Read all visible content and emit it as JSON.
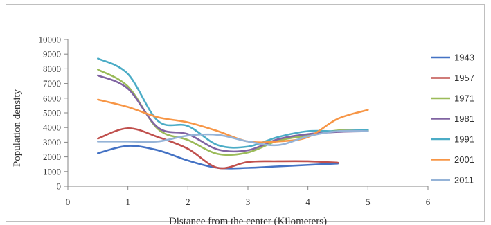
{
  "chart_data": {
    "type": "line",
    "title": "",
    "xlabel": "Distance  from the center (Kilometers)",
    "ylabel": "Population density",
    "xlim": [
      0,
      6
    ],
    "ylim": [
      0,
      10000
    ],
    "xticks": [
      "0",
      "1",
      "2",
      "3",
      "4",
      "5",
      "6"
    ],
    "yticks": [
      "0",
      "1000",
      "2000",
      "3000",
      "4000",
      "5000",
      "6000",
      "7000",
      "8000",
      "9000",
      "10000"
    ],
    "grid": false,
    "legend_position": "right",
    "series": [
      {
        "name": "1943",
        "color": "#4472c4",
        "points": [
          [
            0.5,
            2250
          ],
          [
            1.0,
            2750
          ],
          [
            1.5,
            2450
          ],
          [
            2.0,
            1750
          ],
          [
            2.5,
            1250
          ],
          [
            3.0,
            1250
          ],
          [
            3.5,
            1350
          ],
          [
            4.0,
            1450
          ],
          [
            4.5,
            1550
          ]
        ]
      },
      {
        "name": "1957",
        "color": "#c0504d",
        "points": [
          [
            0.5,
            3250
          ],
          [
            1.0,
            3950
          ],
          [
            1.5,
            3350
          ],
          [
            2.0,
            2550
          ],
          [
            2.5,
            1250
          ],
          [
            3.0,
            1650
          ],
          [
            3.5,
            1700
          ],
          [
            4.0,
            1700
          ],
          [
            4.5,
            1600
          ]
        ]
      },
      {
        "name": "1971",
        "color": "#9bbb59",
        "points": [
          [
            0.5,
            7950
          ],
          [
            1.0,
            6800
          ],
          [
            1.5,
            3900
          ],
          [
            2.0,
            3150
          ],
          [
            2.5,
            2200
          ],
          [
            3.0,
            2300
          ],
          [
            3.5,
            3100
          ],
          [
            4.0,
            3450
          ],
          [
            4.5,
            3800
          ],
          [
            5.0,
            3800
          ]
        ]
      },
      {
        "name": "1981",
        "color": "#8064a2",
        "points": [
          [
            0.5,
            7550
          ],
          [
            1.0,
            6650
          ],
          [
            1.5,
            4000
          ],
          [
            2.0,
            3550
          ],
          [
            2.5,
            2500
          ],
          [
            3.0,
            2450
          ],
          [
            3.5,
            3200
          ],
          [
            4.0,
            3550
          ],
          [
            4.5,
            3700
          ],
          [
            5.0,
            3750
          ]
        ]
      },
      {
        "name": "1991",
        "color": "#4bacc6",
        "points": [
          [
            0.5,
            8700
          ],
          [
            1.0,
            7650
          ],
          [
            1.5,
            4450
          ],
          [
            2.0,
            4100
          ],
          [
            2.5,
            2800
          ],
          [
            3.0,
            2700
          ],
          [
            3.5,
            3350
          ],
          [
            4.0,
            3750
          ],
          [
            4.5,
            3750
          ],
          [
            5.0,
            3850
          ]
        ]
      },
      {
        "name": "2001",
        "color": "#f79646",
        "points": [
          [
            0.5,
            5900
          ],
          [
            1.0,
            5400
          ],
          [
            1.5,
            4700
          ],
          [
            2.0,
            4350
          ],
          [
            2.5,
            3750
          ],
          [
            3.0,
            3050
          ],
          [
            3.5,
            3050
          ],
          [
            4.0,
            3350
          ],
          [
            4.5,
            4600
          ],
          [
            5.0,
            5200
          ]
        ]
      },
      {
        "name": "2011",
        "color": "#95b3d7",
        "points": [
          [
            0.5,
            3050
          ],
          [
            1.0,
            3050
          ],
          [
            1.5,
            3050
          ],
          [
            2.0,
            3450
          ],
          [
            2.5,
            3500
          ],
          [
            3.0,
            3050
          ],
          [
            3.5,
            2800
          ],
          [
            4.0,
            3400
          ],
          [
            4.5,
            3750
          ],
          [
            5.0,
            3750
          ]
        ]
      }
    ]
  }
}
